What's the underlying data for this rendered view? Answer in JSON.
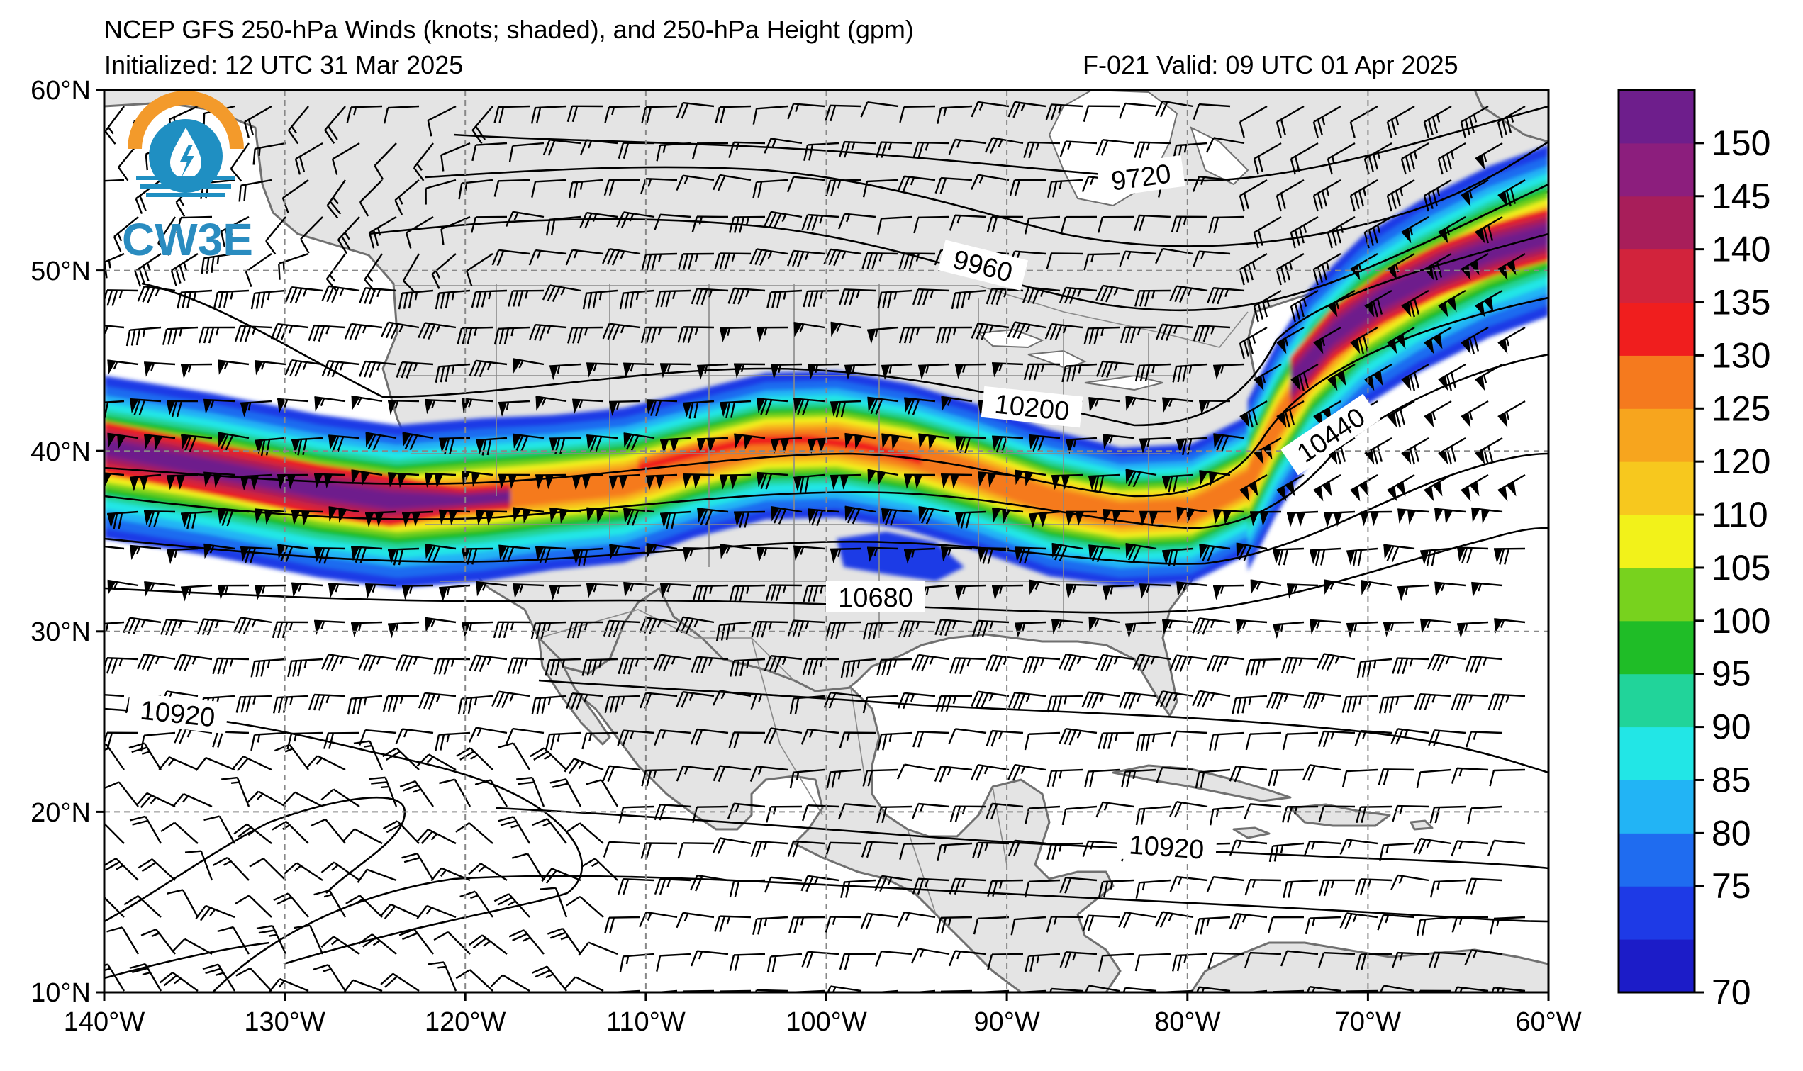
{
  "header": {
    "title": "NCEP GFS 250-hPa Winds (knots; shaded), and 250-hPa Height (gpm)",
    "initialized": "Initialized: 12 UTC 31 Mar 2025",
    "valid": "F-021  Valid: 09 UTC 01 Apr 2025"
  },
  "logo": {
    "text": "CW3E",
    "colors": {
      "ring": "#f39a2b",
      "drop": "#1f8fc2",
      "text": "#2a8cc0"
    }
  },
  "map": {
    "lon_range": [
      -140,
      -60
    ],
    "lat_range": [
      10,
      60
    ],
    "lon_ticks": [
      "140°W",
      "130°W",
      "120°W",
      "110°W",
      "100°W",
      "90°W",
      "80°W",
      "70°W",
      "60°W"
    ],
    "lat_ticks": [
      "60°N",
      "50°N",
      "40°N",
      "30°N",
      "20°N",
      "10°N"
    ],
    "land_color": "#e4e4e4",
    "coast_color": "#707070",
    "grid": "dashed"
  },
  "contours": {
    "labels": [
      {
        "text": "9720"
      },
      {
        "text": "9960"
      },
      {
        "text": "10200"
      },
      {
        "text": "10440"
      },
      {
        "text": "10680"
      },
      {
        "text": "10920"
      },
      {
        "text": "10920"
      }
    ]
  },
  "colorbar": {
    "levels": [
      70,
      75,
      80,
      85,
      90,
      95,
      100,
      105,
      110,
      120,
      125,
      130,
      135,
      140,
      145,
      150
    ],
    "labels": [
      "150",
      "145",
      "140",
      "135",
      "130",
      "125",
      "120",
      "110",
      "105",
      "100",
      "95",
      "90",
      "85",
      "80",
      "75",
      "70"
    ],
    "colors": [
      "#1c1cc8",
      "#1e3ae6",
      "#1f6cf0",
      "#22b4f5",
      "#22e6e6",
      "#21d49a",
      "#1fbd27",
      "#78d21e",
      "#f2f21a",
      "#f7c81e",
      "#f7a51e",
      "#f57a1e",
      "#f01e1e",
      "#d2233c",
      "#a81e5a",
      "#8c1e7d",
      "#6e1e8c"
    ]
  }
}
